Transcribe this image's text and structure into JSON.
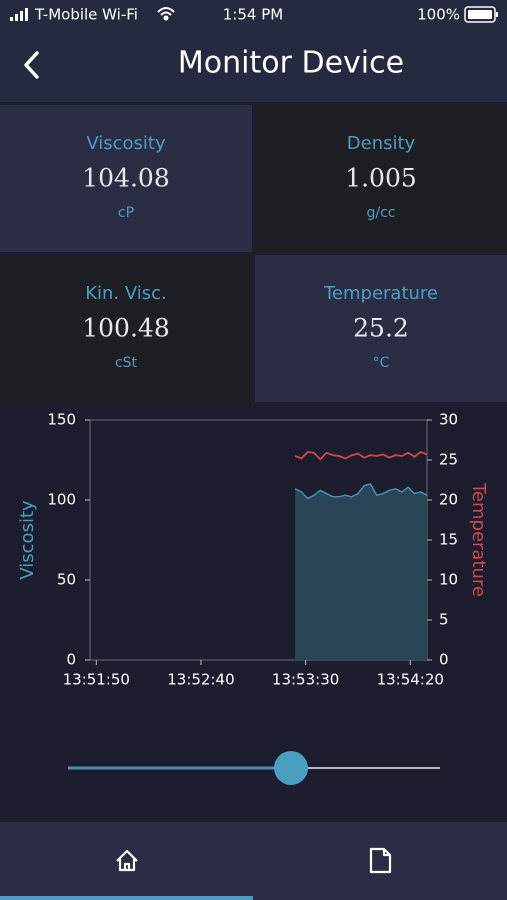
{
  "status_bar": {
    "carrier": "T-Mobile Wi-Fi",
    "time": "1:54 PM",
    "battery": "100%"
  },
  "header": {
    "title": "Monitor Device"
  },
  "tiles": [
    {
      "label": "Viscosity",
      "value": "104.08",
      "unit": "cP"
    },
    {
      "label": "Density",
      "value": "1.005",
      "unit": "g/cc"
    },
    {
      "label": "Kin. Visc.",
      "value": "100.48",
      "unit": "cSt"
    },
    {
      "label": "Temperature",
      "value": "25.2",
      "unit": "°C"
    }
  ],
  "chart_data": {
    "type": "line",
    "ylabel": "Viscosity",
    "y2label": "Temperature",
    "x": [
      "13:53:25",
      "13:53:28",
      "13:53:31",
      "13:53:34",
      "13:53:37",
      "13:53:40",
      "13:53:43",
      "13:53:46",
      "13:53:49",
      "13:53:52",
      "13:53:55",
      "13:53:58",
      "13:54:01",
      "13:54:04",
      "13:54:07",
      "13:54:10",
      "13:54:13",
      "13:54:16",
      "13:54:19",
      "13:54:22",
      "13:54:25",
      "13:54:28"
    ],
    "series": [
      {
        "type": "area",
        "color": "#4a8fb0",
        "fill": "#2a4656",
        "values": [
          107,
          105,
          101,
          103,
          106,
          104,
          102,
          102,
          103,
          102,
          104,
          109,
          110,
          103,
          104,
          106,
          107,
          105,
          108,
          104,
          105,
          103
        ]
      },
      {
        "type": "line",
        "axis": "y2",
        "color": "#d04848",
        "values": [
          25.5,
          25.2,
          26,
          25.9,
          25.1,
          25.9,
          25.6,
          25.5,
          25.2,
          25.6,
          25.8,
          25.3,
          25.6,
          25.5,
          25.7,
          25.3,
          25.6,
          25.5,
          25.9,
          25.4,
          26,
          25.7
        ]
      }
    ],
    "xlim": [
      "13:51:47",
      "13:54:28"
    ],
    "xticks": [
      "13:51:50",
      "13:52:40",
      "13:53:30",
      "13:54:20"
    ],
    "ylim": [
      0,
      150
    ],
    "yticks": [
      0,
      50,
      100,
      150
    ],
    "y2lim": [
      0,
      30
    ],
    "y2ticks": [
      0,
      5,
      10,
      15,
      20,
      25,
      30
    ],
    "ylabel_color": "#4a9fc0",
    "y2label_color": "#d04848"
  }
}
